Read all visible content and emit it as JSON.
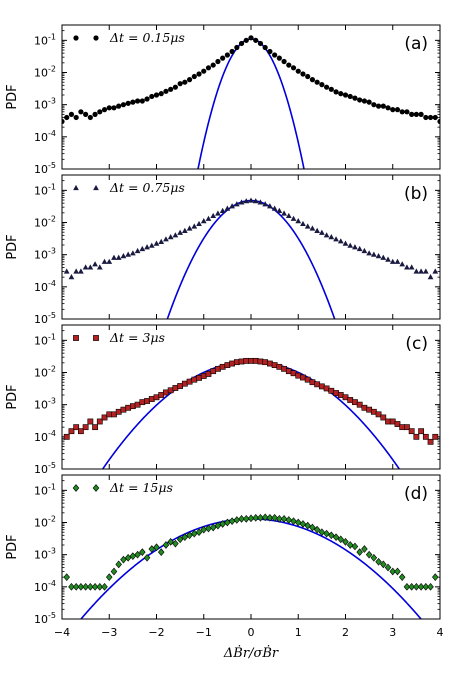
{
  "chart_data": [
    {
      "type": "scatter",
      "panel_label": "(a)",
      "ylabel": "PDF",
      "xlim": [
        -4,
        4
      ],
      "ylim": [
        1e-05,
        0.3
      ],
      "yscale": "log",
      "yticks": [
        1e-05,
        0.0001,
        0.001,
        0.01,
        0.1
      ],
      "ytick_labels": [
        "10-5",
        "10-4",
        "10-3",
        "10-2",
        "10-1"
      ],
      "legend": "Δt = 0.15μs",
      "legend_position": "top-left",
      "marker": "circle",
      "marker_color": "#000000",
      "fit_color": "#0000dd",
      "fit_peak": 0.11,
      "fit_sigma": 0.26,
      "series": [
        {
          "x": [
            -4.0,
            -3.9,
            -3.8,
            -3.7,
            -3.6,
            -3.5,
            -3.4,
            -3.3,
            -3.2,
            -3.1,
            -3.0,
            -2.9,
            -2.8,
            -2.7,
            -2.6,
            -2.5,
            -2.4,
            -2.3,
            -2.2,
            -2.1,
            -2.0,
            -1.9,
            -1.8,
            -1.7,
            -1.6,
            -1.5,
            -1.4,
            -1.3,
            -1.2,
            -1.1,
            -1.0,
            -0.9,
            -0.8,
            -0.7,
            -0.6,
            -0.5,
            -0.4,
            -0.3,
            -0.2,
            -0.1,
            0.0,
            0.1,
            0.2,
            0.3,
            0.4,
            0.5,
            0.6,
            0.7,
            0.8,
            0.9,
            1.0,
            1.1,
            1.2,
            1.3,
            1.4,
            1.5,
            1.6,
            1.7,
            1.8,
            1.9,
            2.0,
            2.1,
            2.2,
            2.3,
            2.4,
            2.5,
            2.6,
            2.7,
            2.8,
            2.9,
            3.0,
            3.1,
            3.2,
            3.3,
            3.4,
            3.5,
            3.6,
            3.7,
            3.8,
            3.9,
            4.0
          ],
          "y": [
            0.0003,
            0.0004,
            0.0005,
            0.0004,
            0.0006,
            0.0005,
            0.0004,
            0.0005,
            0.0006,
            0.0007,
            0.0008,
            0.0008,
            0.0009,
            0.001,
            0.0011,
            0.0012,
            0.0013,
            0.0013,
            0.0015,
            0.0018,
            0.002,
            0.0022,
            0.0026,
            0.003,
            0.0035,
            0.0045,
            0.005,
            0.006,
            0.0075,
            0.009,
            0.011,
            0.014,
            0.017,
            0.022,
            0.028,
            0.035,
            0.045,
            0.06,
            0.08,
            0.1,
            0.12,
            0.1,
            0.08,
            0.06,
            0.045,
            0.035,
            0.028,
            0.022,
            0.017,
            0.014,
            0.011,
            0.009,
            0.0075,
            0.006,
            0.005,
            0.0042,
            0.0035,
            0.003,
            0.0025,
            0.0022,
            0.002,
            0.0018,
            0.0016,
            0.0014,
            0.0013,
            0.0012,
            0.001,
            0.0009,
            0.0009,
            0.0008,
            0.0007,
            0.0007,
            0.0006,
            0.0006,
            0.0005,
            0.0005,
            0.0005,
            0.0004,
            0.0004,
            0.0004,
            0.0003
          ]
        }
      ]
    },
    {
      "type": "scatter",
      "panel_label": "(b)",
      "ylabel": "PDF",
      "xlim": [
        -4,
        4
      ],
      "ylim": [
        1e-05,
        0.3
      ],
      "yscale": "log",
      "yticks": [
        1e-05,
        0.0001,
        0.001,
        0.01,
        0.1
      ],
      "ytick_labels": [
        "10-5",
        "10-4",
        "10-3",
        "10-2",
        "10-1"
      ],
      "legend": "Δt = 0.75μs",
      "legend_position": "top-left",
      "marker": "triangle",
      "marker_color": "#1a1a40",
      "fit_color": "#0000dd",
      "fit_peak": 0.048,
      "fit_sigma": 0.43,
      "series": [
        {
          "x": [
            -3.9,
            -3.8,
            -3.7,
            -3.6,
            -3.5,
            -3.4,
            -3.3,
            -3.2,
            -3.1,
            -3.0,
            -2.9,
            -2.8,
            -2.7,
            -2.6,
            -2.5,
            -2.4,
            -2.3,
            -2.2,
            -2.1,
            -2.0,
            -1.9,
            -1.8,
            -1.7,
            -1.6,
            -1.5,
            -1.4,
            -1.3,
            -1.2,
            -1.1,
            -1.0,
            -0.9,
            -0.8,
            -0.7,
            -0.6,
            -0.5,
            -0.4,
            -0.3,
            -0.2,
            -0.1,
            0.0,
            0.1,
            0.2,
            0.3,
            0.4,
            0.5,
            0.6,
            0.7,
            0.8,
            0.9,
            1.0,
            1.1,
            1.2,
            1.3,
            1.4,
            1.5,
            1.6,
            1.7,
            1.8,
            1.9,
            2.0,
            2.1,
            2.2,
            2.3,
            2.4,
            2.5,
            2.6,
            2.7,
            2.8,
            2.9,
            3.0,
            3.1,
            3.2,
            3.3,
            3.4,
            3.5,
            3.6,
            3.7,
            3.8,
            3.9
          ],
          "y": [
            0.0003,
            0.0002,
            0.0003,
            0.0003,
            0.0004,
            0.0004,
            0.0005,
            0.0004,
            0.0006,
            0.0006,
            0.0008,
            0.0008,
            0.0009,
            0.001,
            0.0011,
            0.0013,
            0.0015,
            0.0017,
            0.0019,
            0.0022,
            0.0025,
            0.003,
            0.0035,
            0.004,
            0.0048,
            0.0055,
            0.0065,
            0.0075,
            0.009,
            0.011,
            0.013,
            0.016,
            0.019,
            0.023,
            0.027,
            0.032,
            0.037,
            0.042,
            0.046,
            0.048,
            0.046,
            0.042,
            0.037,
            0.032,
            0.027,
            0.023,
            0.019,
            0.016,
            0.013,
            0.011,
            0.009,
            0.0075,
            0.0065,
            0.0055,
            0.0048,
            0.004,
            0.0035,
            0.003,
            0.0026,
            0.0022,
            0.0019,
            0.0017,
            0.0015,
            0.0013,
            0.0011,
            0.001,
            0.0009,
            0.0008,
            0.0007,
            0.0006,
            0.0006,
            0.0005,
            0.0004,
            0.0004,
            0.0003,
            0.0003,
            0.0003,
            0.0002,
            0.0003
          ]
        }
      ]
    },
    {
      "type": "scatter",
      "panel_label": "(c)",
      "ylabel": "PDF",
      "xlim": [
        -4,
        4
      ],
      "ylim": [
        1e-05,
        0.3
      ],
      "yscale": "log",
      "yticks": [
        1e-05,
        0.0001,
        0.001,
        0.01,
        0.1
      ],
      "ytick_labels": [
        "10-5",
        "10-4",
        "10-3",
        "10-2",
        "10-1"
      ],
      "legend": "Δt = 3μs",
      "legend_position": "top-left",
      "marker": "square",
      "marker_color": "#b22222",
      "fit_color": "#0000dd",
      "fit_peak": 0.022,
      "fit_sigma": 0.8,
      "series": [
        {
          "x": [
            -3.9,
            -3.8,
            -3.7,
            -3.6,
            -3.5,
            -3.4,
            -3.3,
            -3.2,
            -3.1,
            -3.0,
            -2.9,
            -2.8,
            -2.7,
            -2.6,
            -2.5,
            -2.4,
            -2.3,
            -2.2,
            -2.1,
            -2.0,
            -1.9,
            -1.8,
            -1.7,
            -1.6,
            -1.5,
            -1.4,
            -1.3,
            -1.2,
            -1.1,
            -1.0,
            -0.9,
            -0.8,
            -0.7,
            -0.6,
            -0.5,
            -0.4,
            -0.3,
            -0.2,
            -0.1,
            0.0,
            0.1,
            0.2,
            0.3,
            0.4,
            0.5,
            0.6,
            0.7,
            0.8,
            0.9,
            1.0,
            1.1,
            1.2,
            1.3,
            1.4,
            1.5,
            1.6,
            1.7,
            1.8,
            1.9,
            2.0,
            2.1,
            2.2,
            2.3,
            2.4,
            2.5,
            2.6,
            2.7,
            2.8,
            2.9,
            3.0,
            3.1,
            3.2,
            3.3,
            3.4,
            3.5,
            3.6,
            3.7,
            3.8,
            3.9
          ],
          "y": [
            0.0001,
            0.00015,
            0.0002,
            0.00015,
            0.0002,
            0.0003,
            0.0002,
            0.0003,
            0.0004,
            0.0005,
            0.0005,
            0.0006,
            0.0007,
            0.0008,
            0.0009,
            0.001,
            0.0012,
            0.0013,
            0.0015,
            0.0017,
            0.002,
            0.0024,
            0.0028,
            0.0033,
            0.0038,
            0.0045,
            0.0052,
            0.006,
            0.0068,
            0.0078,
            0.009,
            0.011,
            0.013,
            0.015,
            0.017,
            0.019,
            0.021,
            0.022,
            0.023,
            0.023,
            0.023,
            0.022,
            0.021,
            0.019,
            0.017,
            0.015,
            0.013,
            0.011,
            0.0095,
            0.008,
            0.007,
            0.006,
            0.005,
            0.0043,
            0.0037,
            0.0032,
            0.0027,
            0.0023,
            0.002,
            0.0017,
            0.0014,
            0.0012,
            0.001,
            0.0008,
            0.0007,
            0.0006,
            0.0005,
            0.0004,
            0.0003,
            0.0003,
            0.00025,
            0.0002,
            0.0002,
            0.00015,
            0.0001,
            0.00015,
            0.0001,
            7e-05,
            0.0001
          ]
        }
      ]
    },
    {
      "type": "scatter",
      "panel_label": "(d)",
      "ylabel": "PDF",
      "xlim": [
        -4,
        4
      ],
      "ylim": [
        1e-05,
        0.3
      ],
      "yscale": "log",
      "yticks": [
        1e-05,
        0.0001,
        0.001,
        0.01,
        0.1
      ],
      "ytick_labels": [
        "10-5",
        "10-4",
        "10-3",
        "10-2",
        "10-1"
      ],
      "xticks": [
        -4,
        -3,
        -2,
        -1,
        0,
        1,
        2,
        3,
        4
      ],
      "xtick_labels": [
        "−4",
        "−3",
        "−2",
        "−1",
        "0",
        "1",
        "2",
        "3",
        "4"
      ],
      "xlabel": "ΔḂr/σḂr",
      "legend": "Δt = 15μs",
      "legend_position": "top-left",
      "marker": "diamond",
      "marker_color": "#228b22",
      "fit_color": "#0000dd",
      "fit_peak": 0.013,
      "fit_sigma": 0.95,
      "series": [
        {
          "x": [
            -3.9,
            -3.8,
            -3.7,
            -3.6,
            -3.5,
            -3.4,
            -3.3,
            -3.2,
            -3.1,
            -3.0,
            -2.9,
            -2.8,
            -2.7,
            -2.6,
            -2.5,
            -2.4,
            -2.3,
            -2.2,
            -2.1,
            -2.0,
            -1.9,
            -1.8,
            -1.7,
            -1.6,
            -1.5,
            -1.4,
            -1.3,
            -1.2,
            -1.1,
            -1.0,
            -0.9,
            -0.8,
            -0.7,
            -0.6,
            -0.5,
            -0.4,
            -0.3,
            -0.2,
            -0.1,
            0.0,
            0.1,
            0.2,
            0.3,
            0.4,
            0.5,
            0.6,
            0.7,
            0.8,
            0.9,
            1.0,
            1.1,
            1.2,
            1.3,
            1.4,
            1.5,
            1.6,
            1.7,
            1.8,
            1.9,
            2.0,
            2.1,
            2.2,
            2.3,
            2.4,
            2.5,
            2.6,
            2.7,
            2.8,
            2.9,
            3.0,
            3.1,
            3.2,
            3.3,
            3.4,
            3.5,
            3.6,
            3.7,
            3.8,
            3.9
          ],
          "y": [
            0.0002,
            0.0001,
            0.0001,
            0.0001,
            0.0001,
            0.0001,
            0.0001,
            0.0001,
            0.0001,
            0.0002,
            0.0003,
            0.0005,
            0.0007,
            0.0008,
            0.0009,
            0.001,
            0.0012,
            0.0008,
            0.0015,
            0.0017,
            0.0012,
            0.002,
            0.0025,
            0.0022,
            0.003,
            0.0035,
            0.004,
            0.0045,
            0.005,
            0.006,
            0.0065,
            0.007,
            0.008,
            0.009,
            0.01,
            0.011,
            0.012,
            0.013,
            0.013,
            0.0135,
            0.014,
            0.014,
            0.0145,
            0.014,
            0.014,
            0.013,
            0.013,
            0.012,
            0.011,
            0.01,
            0.009,
            0.008,
            0.007,
            0.006,
            0.005,
            0.0045,
            0.004,
            0.0035,
            0.003,
            0.0025,
            0.002,
            0.0018,
            0.0012,
            0.0015,
            0.001,
            0.0008,
            0.0006,
            0.0005,
            0.0004,
            0.0003,
            0.0003,
            0.0002,
            0.0001,
            0.0001,
            0.0001,
            0.0001,
            0.0001,
            0.0001,
            0.0002
          ]
        }
      ]
    }
  ]
}
